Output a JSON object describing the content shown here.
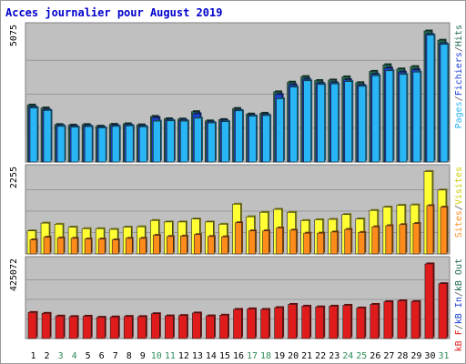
{
  "title": "Acces journalier pour August 2019",
  "colors": {
    "background": "#ffffff",
    "plot_background": "#c0c0c0",
    "gridline": "#999999",
    "hits": "#1f6b4d",
    "files": "#1a3fd6",
    "pages": "#29b6f6",
    "visits": "#ffff33",
    "sites": "#ff8c1a",
    "kb": "#e01b1b",
    "weekday_label": "#000000",
    "weekend_label": "#2e8b57",
    "title": "#0000cc"
  },
  "chart_data": [
    {
      "type": "bar",
      "title": "Acces journalier pour August 2019",
      "panel": "hits-files-pages",
      "ytick_label": "5075",
      "ylim": [
        0,
        5075
      ],
      "legend_position": "right",
      "legend": [
        {
          "label": "Pages",
          "color": "#29b6f6"
        },
        {
          "label": "/",
          "color": "#555555"
        },
        {
          "label": "Fichiers",
          "color": "#1a3fd6"
        },
        {
          "label": "/",
          "color": "#555555"
        },
        {
          "label": "Hits",
          "color": "#1f6b4d"
        }
      ],
      "categories": [
        "1",
        "2",
        "3",
        "4",
        "5",
        "6",
        "7",
        "8",
        "9",
        "10",
        "11",
        "12",
        "13",
        "14",
        "15",
        "16",
        "17",
        "18",
        "19",
        "20",
        "21",
        "22",
        "23",
        "24",
        "25",
        "26",
        "27",
        "28",
        "29",
        "30",
        "31"
      ],
      "series": [
        {
          "name": "Hits",
          "values": [
            2160,
            2050,
            1420,
            1400,
            1420,
            1360,
            1430,
            1450,
            1410,
            1730,
            1640,
            1630,
            1910,
            1560,
            1610,
            2030,
            1820,
            1850,
            2660,
            3030,
            3240,
            3090,
            3110,
            3230,
            3010,
            3440,
            3690,
            3530,
            3620,
            4970,
            4620
          ]
        },
        {
          "name": "Fichiers",
          "values": [
            2080,
            1980,
            1380,
            1350,
            1370,
            1320,
            1380,
            1400,
            1360,
            1680,
            1590,
            1580,
            1830,
            1510,
            1560,
            1960,
            1760,
            1790,
            2560,
            2930,
            3140,
            2990,
            3010,
            3120,
            2910,
            3330,
            3560,
            3410,
            3500,
            4840,
            4490
          ]
        },
        {
          "name": "Pages",
          "values": [
            2050,
            1950,
            1350,
            1320,
            1340,
            1290,
            1350,
            1370,
            1330,
            1550,
            1560,
            1550,
            1660,
            1480,
            1530,
            1940,
            1740,
            1760,
            2400,
            2840,
            3080,
            2940,
            2960,
            3050,
            2870,
            3270,
            3460,
            3320,
            3410,
            4810,
            4460
          ]
        }
      ]
    },
    {
      "type": "bar",
      "panel": "visits-sites",
      "ytick_label": "2255",
      "ylim": [
        0,
        2255
      ],
      "legend_position": "right",
      "legend": [
        {
          "label": "Sites",
          "color": "#ff8c1a"
        },
        {
          "label": "/",
          "color": "#555555"
        },
        {
          "label": "Visites",
          "color": "#cccc00"
        }
      ],
      "categories": [
        "1",
        "2",
        "3",
        "4",
        "5",
        "6",
        "7",
        "8",
        "9",
        "10",
        "11",
        "12",
        "13",
        "14",
        "15",
        "16",
        "17",
        "18",
        "19",
        "20",
        "21",
        "22",
        "23",
        "24",
        "25",
        "26",
        "27",
        "28",
        "29",
        "30",
        "31"
      ],
      "series": [
        {
          "name": "Visites",
          "values": [
            620,
            830,
            800,
            720,
            680,
            680,
            660,
            720,
            730,
            900,
            860,
            860,
            940,
            860,
            800,
            1340,
            1000,
            1120,
            1200,
            1120,
            900,
            920,
            930,
            1060,
            940,
            1170,
            1260,
            1310,
            1320,
            2220,
            1720
          ]
        },
        {
          "name": "Sites",
          "values": [
            380,
            450,
            430,
            420,
            400,
            400,
            380,
            420,
            420,
            500,
            470,
            480,
            520,
            470,
            460,
            840,
            620,
            620,
            700,
            640,
            560,
            560,
            590,
            660,
            580,
            730,
            760,
            790,
            820,
            1300,
            1260
          ]
        }
      ]
    },
    {
      "type": "bar",
      "panel": "kb",
      "ytick_label": "425072",
      "ylim": [
        0,
        425072
      ],
      "legend_position": "right",
      "legend": [
        {
          "label": "kB F",
          "color": "#e01b1b"
        },
        {
          "label": "/",
          "color": "#555555"
        },
        {
          "label": "kB In",
          "color": "#1a3fd6"
        },
        {
          "label": "/",
          "color": "#555555"
        },
        {
          "label": "kB Out",
          "color": "#1f6b4d"
        }
      ],
      "categories": [
        "1",
        "2",
        "3",
        "4",
        "5",
        "6",
        "7",
        "8",
        "9",
        "10",
        "11",
        "12",
        "13",
        "14",
        "15",
        "16",
        "17",
        "18",
        "19",
        "20",
        "21",
        "22",
        "23",
        "24",
        "25",
        "26",
        "27",
        "28",
        "29",
        "30",
        "31"
      ],
      "series": [
        {
          "name": "kB F",
          "values": [
            145000,
            140000,
            125000,
            122000,
            124000,
            118000,
            120000,
            123000,
            122000,
            138000,
            126000,
            128000,
            142000,
            126000,
            130000,
            162000,
            165000,
            162000,
            172000,
            190000,
            180000,
            176000,
            180000,
            185000,
            170000,
            190000,
            205000,
            210000,
            206000,
            415000,
            305000
          ]
        }
      ]
    }
  ],
  "x_axis": {
    "labels": [
      "1",
      "2",
      "3",
      "4",
      "5",
      "6",
      "7",
      "8",
      "9",
      "10",
      "11",
      "12",
      "13",
      "14",
      "15",
      "16",
      "17",
      "18",
      "19",
      "20",
      "21",
      "22",
      "23",
      "24",
      "25",
      "26",
      "27",
      "28",
      "29",
      "30",
      "31"
    ],
    "weekend_days": [
      "3",
      "4",
      "10",
      "11",
      "17",
      "18",
      "24",
      "25",
      "31"
    ]
  }
}
